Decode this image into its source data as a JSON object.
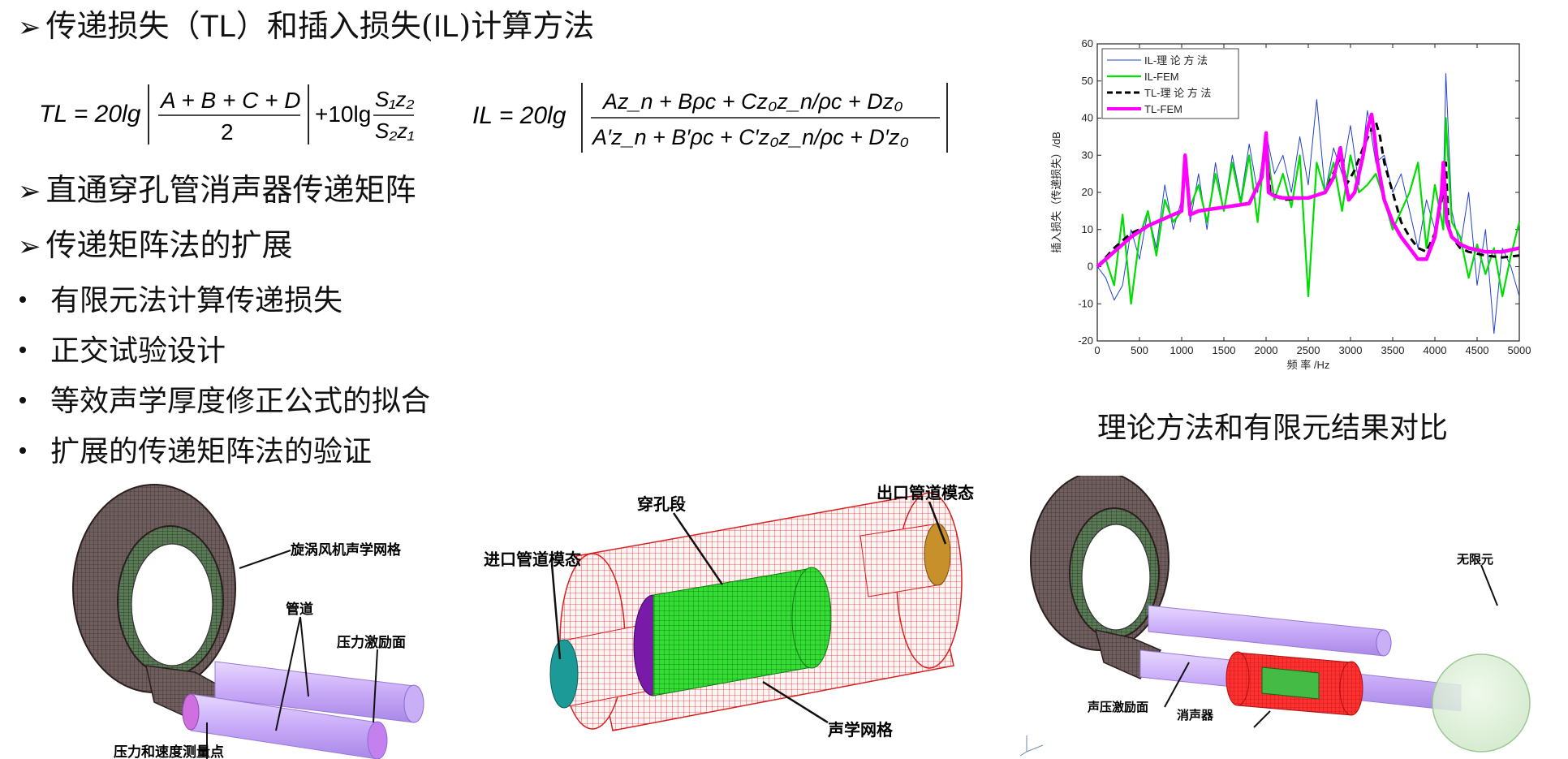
{
  "headings": {
    "h1_prefix": "传递损失（",
    "h1_tl": "TL",
    "h1_mid": "）和插入损失(",
    "h1_il": "IL",
    "h1_suffix": ")计算方法",
    "h2": "直通穿孔管消声器传递矩阵",
    "h3": "传递矩阵法的扩展"
  },
  "bullets": [
    "有限元法计算传递损失",
    "正交试验设计",
    "等效声学厚度修正公式的拟合",
    "扩展的传递矩阵法的验证"
  ],
  "formulas": {
    "tl": {
      "lhs": "TL = 20lg",
      "num": "A + B + C + D",
      "den": "2",
      "plus": "+10lg",
      "frac2_num": "S₁z₂",
      "frac2_den": "S₂z₁"
    },
    "il": {
      "lhs": "IL = 20lg",
      "num": "Az_n + Bρc + Cz₀z_n/ρc + Dz₀",
      "den": "A′z_n + B′ρc + C′z₀z_n/ρc + D′z₀"
    }
  },
  "caption": "理论方法和有限元结果对比",
  "figures": {
    "fig1": {
      "label_fan_mesh": "旋涡风机声学网格",
      "label_pipe": "管道",
      "label_pressure_face": "压力激励面",
      "label_measure_point": "压力和速度测量点"
    },
    "fig2": {
      "label_perforated": "穿孔段",
      "label_outlet": "出口管道模态",
      "label_inlet": "进口管道模态",
      "label_acoustic_mesh": "声学网格"
    },
    "fig3": {
      "label_infinite": "无限元",
      "label_excitation": "声压激励面",
      "label_muffler": "消声器"
    }
  },
  "colors": {
    "il_theory": "#2040d0",
    "il_fem": "#00dd00",
    "tl_theory": "#000000",
    "tl_fem": "#ff00ff",
    "mesh_dark": "#4a3a3a",
    "mesh_red": "#ff2020",
    "mesh_green": "#20c020",
    "pipe_purple": "#c8a8ff"
  },
  "chart_data": {
    "type": "line",
    "title": "",
    "xlabel": "频 率 /Hz",
    "ylabel": "插入损失（传递损失）/dB",
    "xlim": [
      0,
      5000
    ],
    "ylim": [
      -20,
      60
    ],
    "xticks": [
      "0",
      "500",
      "1000",
      "1500",
      "2000",
      "2500",
      "3000",
      "3500",
      "4000",
      "4500",
      "5000"
    ],
    "yticks": [
      "-20",
      "-10",
      "0",
      "10",
      "20",
      "30",
      "40",
      "50",
      "60"
    ],
    "legend_position": "top-left",
    "grid": false,
    "series": [
      {
        "name": "IL-理 论 方 法",
        "style": "thin-solid",
        "x": [
          0,
          100,
          200,
          300,
          400,
          500,
          600,
          700,
          800,
          900,
          1000,
          1050,
          1100,
          1200,
          1300,
          1400,
          1500,
          1600,
          1700,
          1800,
          1900,
          2000,
          2100,
          2200,
          2300,
          2400,
          2500,
          2600,
          2700,
          2800,
          2900,
          3000,
          3100,
          3200,
          3300,
          3400,
          3500,
          3600,
          3700,
          3800,
          3900,
          4000,
          4100,
          4130,
          4200,
          4300,
          4400,
          4500,
          4600,
          4700,
          4800,
          4900,
          5000
        ],
        "y": [
          0,
          -3,
          -9,
          -5,
          10,
          2,
          15,
          5,
          22,
          10,
          18,
          30,
          12,
          25,
          10,
          28,
          15,
          30,
          18,
          33,
          20,
          36,
          25,
          30,
          20,
          35,
          22,
          45,
          20,
          32,
          25,
          38,
          22,
          42,
          28,
          30,
          20,
          25,
          15,
          5,
          18,
          10,
          20,
          52,
          15,
          5,
          20,
          -5,
          10,
          -18,
          5,
          0,
          -8
        ]
      },
      {
        "name": "IL-FEM",
        "style": "solid",
        "x": [
          0,
          100,
          200,
          300,
          400,
          500,
          600,
          700,
          800,
          900,
          1000,
          1050,
          1100,
          1200,
          1300,
          1400,
          1500,
          1600,
          1700,
          1800,
          1900,
          2000,
          2050,
          2100,
          2200,
          2300,
          2400,
          2500,
          2600,
          2700,
          2800,
          2900,
          3000,
          3100,
          3200,
          3300,
          3400,
          3500,
          3600,
          3700,
          3800,
          3900,
          4000,
          4100,
          4130,
          4200,
          4300,
          4400,
          4500,
          4600,
          4700,
          4800,
          4900,
          5000
        ],
        "y": [
          0,
          2,
          -5,
          14,
          -10,
          8,
          15,
          3,
          18,
          12,
          15,
          30,
          16,
          22,
          12,
          25,
          15,
          28,
          17,
          30,
          12,
          36,
          25,
          18,
          25,
          16,
          30,
          -8,
          28,
          20,
          28,
          15,
          30,
          20,
          22,
          25,
          18,
          10,
          15,
          20,
          28,
          5,
          22,
          10,
          40,
          12,
          8,
          -3,
          6,
          -2,
          5,
          -8,
          3,
          12
        ]
      },
      {
        "name": "TL-理 论 方 法",
        "style": "dashed",
        "x": [
          0,
          200,
          400,
          600,
          800,
          1000,
          1040,
          1100,
          1200,
          1500,
          1800,
          1950,
          2000,
          2050,
          2200,
          2500,
          2700,
          2850,
          2900,
          2950,
          3050,
          3150,
          3250,
          3300,
          3350,
          3400,
          3500,
          3600,
          3700,
          3800,
          3900,
          4000,
          4100,
          4130,
          4160,
          4200,
          4300,
          4400,
          4600,
          4800,
          5000
        ],
        "y": [
          0,
          5,
          9,
          11,
          13,
          15,
          30,
          14,
          15,
          16,
          17,
          24,
          34,
          20,
          18,
          18.5,
          20,
          28,
          30,
          22,
          26,
          32,
          37,
          39,
          35,
          28,
          20,
          12,
          8,
          5,
          4,
          9,
          20,
          28,
          12,
          8,
          5,
          4,
          3,
          2.5,
          3
        ]
      },
      {
        "name": "TL-FEM",
        "style": "thick-solid",
        "x": [
          0,
          200,
          400,
          600,
          800,
          1000,
          1040,
          1100,
          1200,
          1500,
          1800,
          1950,
          2000,
          2030,
          2100,
          2200,
          2500,
          2700,
          2800,
          2880,
          2920,
          2980,
          3050,
          3150,
          3200,
          3250,
          3280,
          3320,
          3400,
          3500,
          3600,
          3700,
          3800,
          3900,
          4000,
          4080,
          4100,
          4140,
          4200,
          4300,
          4400,
          4600,
          4800,
          5000
        ],
        "y": [
          0,
          4,
          8,
          11,
          13,
          15,
          30,
          14,
          15,
          16,
          17,
          24,
          36,
          20,
          19,
          18.5,
          18.5,
          20,
          24,
          32,
          25,
          18,
          20,
          30,
          37,
          41,
          36,
          28,
          18,
          12,
          8,
          5,
          2,
          2,
          8,
          20,
          28,
          12,
          8,
          6,
          5,
          4,
          4,
          5
        ]
      }
    ]
  }
}
